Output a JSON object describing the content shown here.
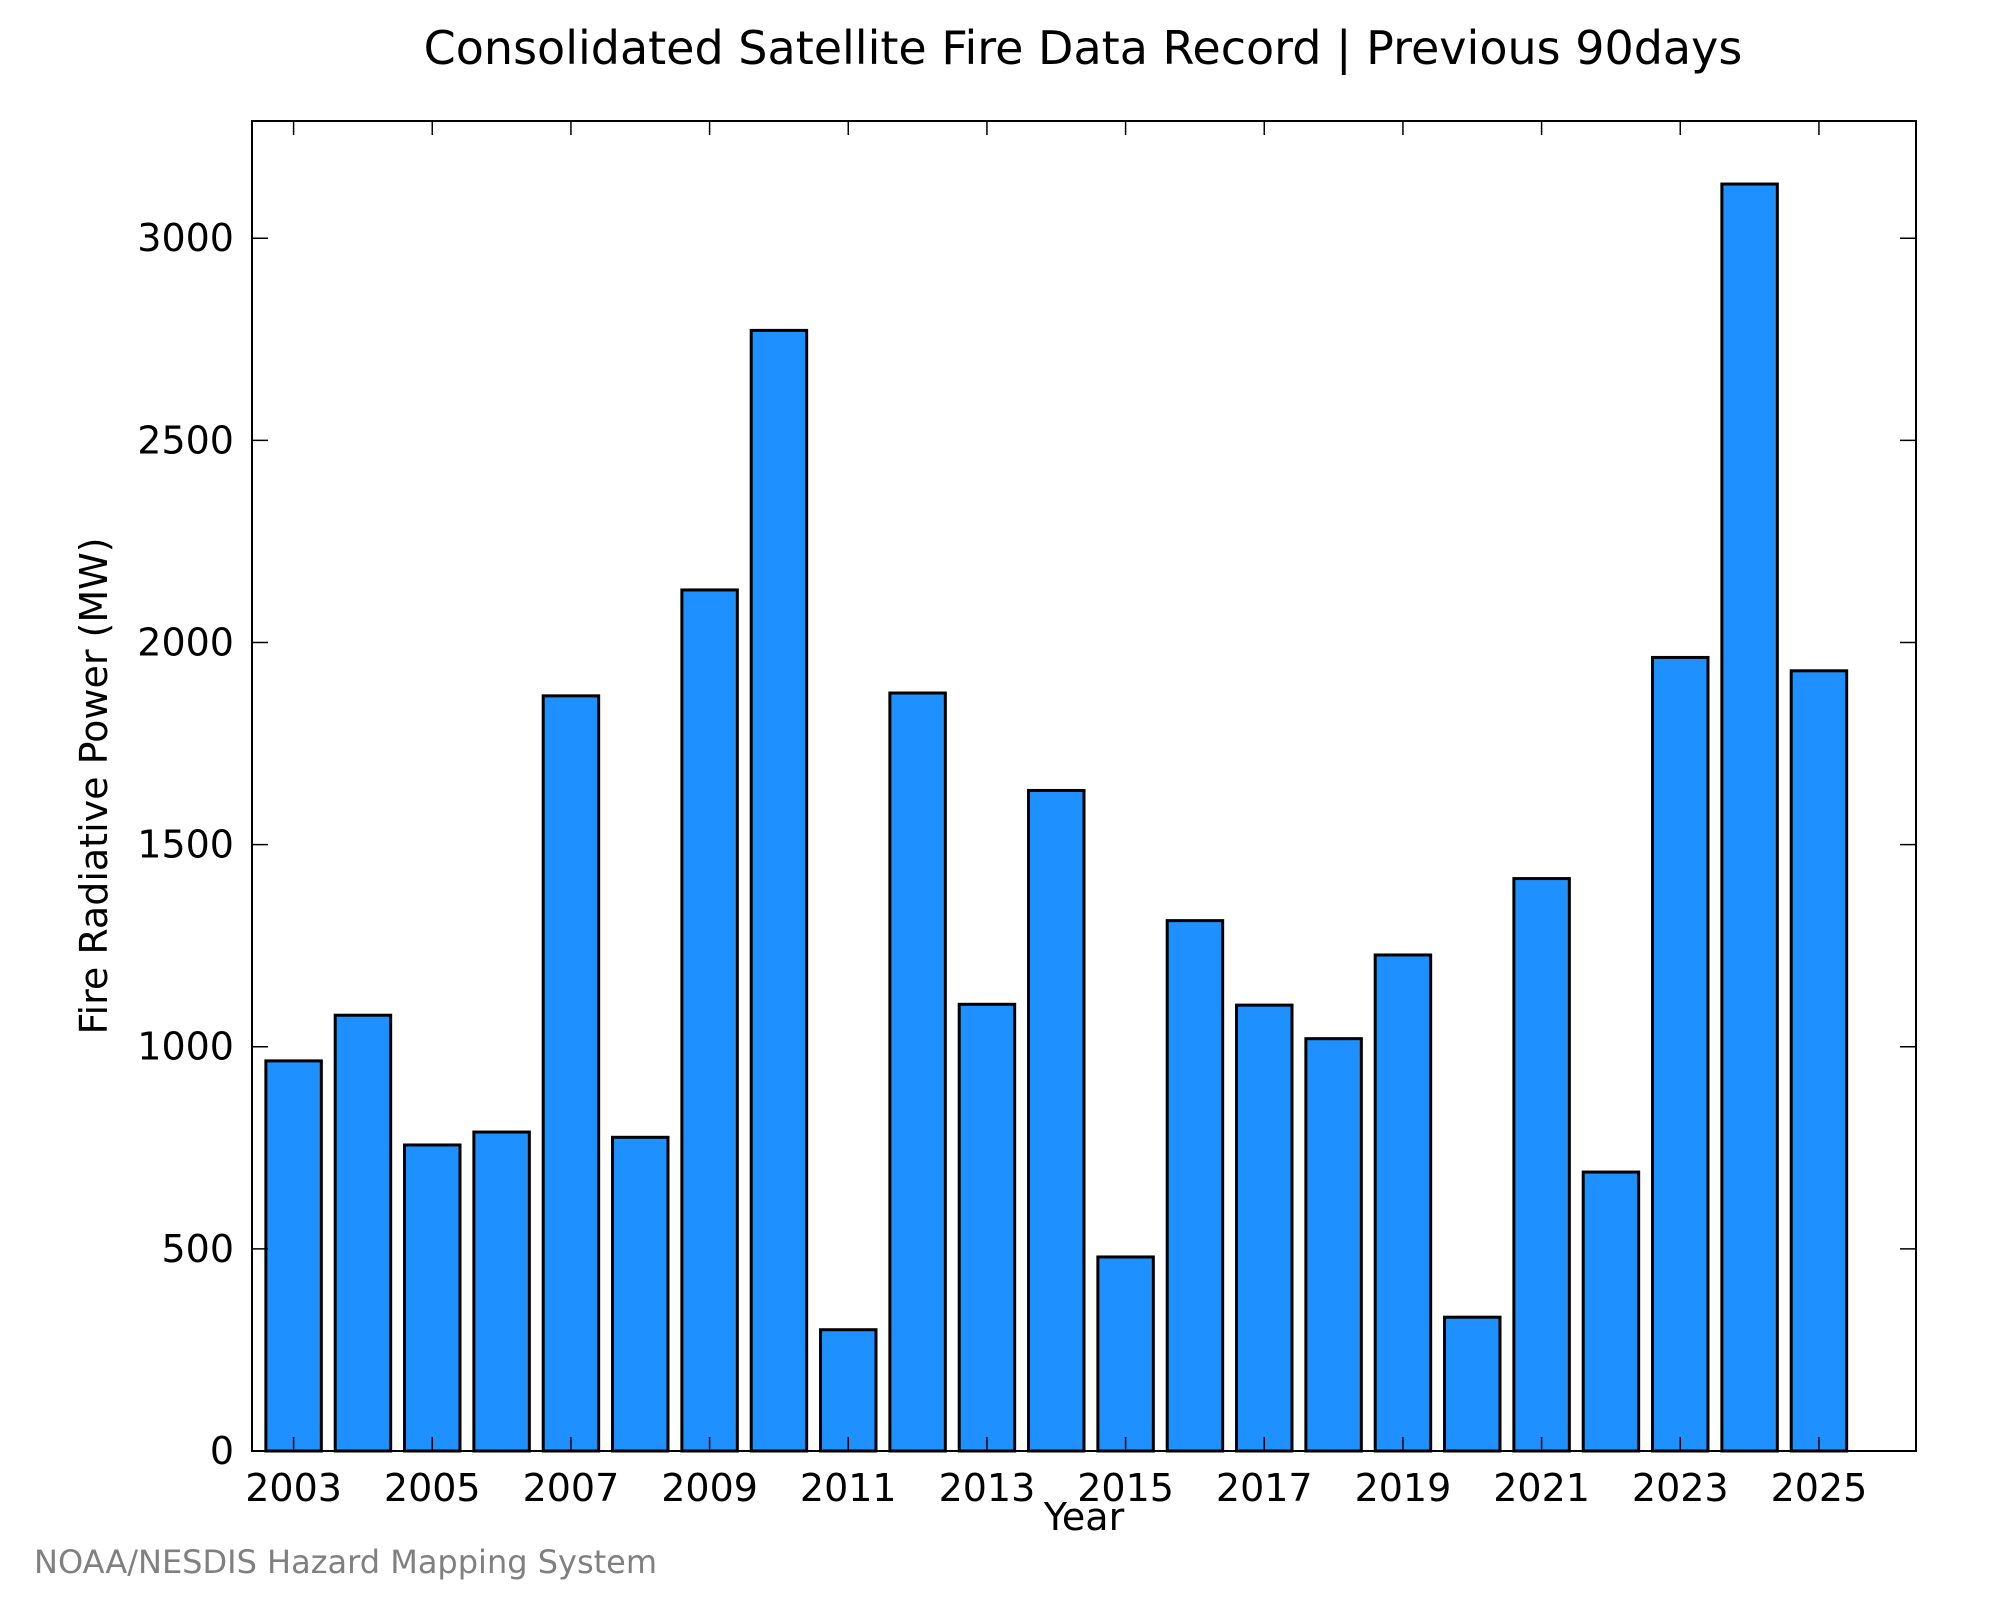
{
  "chart_data": {
    "type": "bar",
    "title": "Consolidated Satellite Fire Data Record | Previous 90days",
    "xlabel": "Year",
    "ylabel": "Fire Radiative Power (MW)",
    "credit": "NOAA/NESDIS Hazard Mapping System",
    "categories": [
      2003,
      2004,
      2005,
      2006,
      2007,
      2008,
      2009,
      2010,
      2011,
      2012,
      2013,
      2014,
      2015,
      2016,
      2017,
      2018,
      2019,
      2020,
      2021,
      2022,
      2023,
      2024,
      2025
    ],
    "values": [
      965,
      1078,
      757,
      789,
      1868,
      776,
      2130,
      2772,
      300,
      1875,
      1105,
      1634,
      480,
      1312,
      1103,
      1020,
      1227,
      331,
      1416,
      690,
      1963,
      3134,
      1930
    ],
    "x_tick_labels": [
      "2003",
      "2005",
      "2007",
      "2009",
      "2011",
      "2013",
      "2015",
      "2017",
      "2019",
      "2021",
      "2023",
      "2025"
    ],
    "y_tick_labels": [
      "0",
      "500",
      "1000",
      "1500",
      "2000",
      "2500",
      "3000"
    ],
    "ylim": [
      0,
      3290
    ],
    "xlim": [
      2002.4,
      2026.4
    ],
    "bar_color": "#1e90ff",
    "edge_color": "#000000",
    "grid": false,
    "legend": "none"
  }
}
